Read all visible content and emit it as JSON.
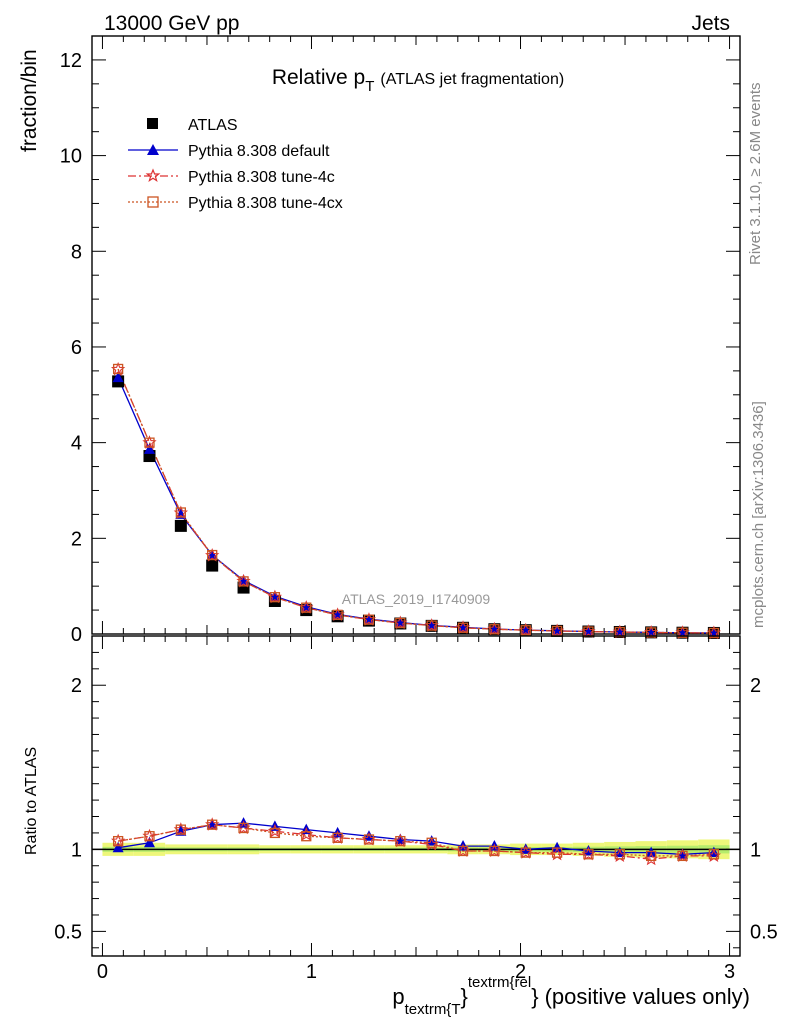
{
  "header": {
    "left": "13000 GeV pp",
    "right": "Jets"
  },
  "side_labels": {
    "rivet": "Rivet 3.1.10, ≥ 2.6M events",
    "mcplots": "mcplots.cern.ch [arXiv:1306.3436]"
  },
  "chart_data": [
    {
      "type": "line",
      "panel": "main",
      "title_main": "Relative p",
      "title_sub": "T",
      "title_rest": "(ATLAS jet fragmentation)",
      "ylabel": "fraction/bin",
      "watermark": "ATLAS_2019_I1740909",
      "xlim": [
        -0.05,
        3.05
      ],
      "ylim": [
        0,
        12.5
      ],
      "yticks": [
        0,
        2,
        4,
        6,
        8,
        10,
        12
      ],
      "ytick_labels": [
        "0",
        "2",
        "4",
        "6",
        "8",
        "10",
        "12"
      ],
      "x": [
        0.075,
        0.225,
        0.375,
        0.525,
        0.675,
        0.825,
        0.975,
        1.125,
        1.275,
        1.425,
        1.575,
        1.725,
        1.875,
        2.025,
        2.175,
        2.325,
        2.475,
        2.625,
        2.775,
        2.925
      ],
      "series": [
        {
          "name": "ATLAS",
          "color": "#000000",
          "marker": "square-filled",
          "values": [
            5.28,
            3.72,
            2.26,
            1.43,
            0.97,
            0.69,
            0.5,
            0.37,
            0.28,
            0.22,
            0.17,
            0.13,
            0.1,
            0.08,
            0.065,
            0.052,
            0.042,
            0.034,
            0.027,
            0.022
          ]
        },
        {
          "name": "Pythia 8.308 default",
          "color": "#0000cc",
          "marker": "triangle-filled",
          "dash": "",
          "values": [
            5.36,
            3.86,
            2.5,
            1.65,
            1.12,
            0.79,
            0.57,
            0.41,
            0.31,
            0.24,
            0.18,
            0.14,
            0.105,
            0.082,
            0.066,
            0.052,
            0.041,
            0.033,
            0.026,
            0.021
          ]
        },
        {
          "name": "Pythia 8.308 tune-4c",
          "color": "#dd3333",
          "marker": "star-open",
          "dash": "8,3,2,3",
          "values": [
            5.53,
            4.0,
            2.53,
            1.64,
            1.1,
            0.77,
            0.55,
            0.4,
            0.3,
            0.23,
            0.175,
            0.13,
            0.1,
            0.079,
            0.063,
            0.05,
            0.04,
            0.032,
            0.026,
            0.021
          ]
        },
        {
          "name": "Pythia 8.308 tune-4cx",
          "color": "#cc5522",
          "marker": "square-open",
          "dash": "2,2",
          "values": [
            5.54,
            4.0,
            2.54,
            1.65,
            1.1,
            0.77,
            0.55,
            0.4,
            0.3,
            0.23,
            0.176,
            0.13,
            0.1,
            0.079,
            0.064,
            0.051,
            0.041,
            0.033,
            0.026,
            0.021
          ]
        }
      ]
    },
    {
      "type": "line",
      "panel": "ratio",
      "ylabel": "Ratio to ATLAS",
      "xlabel_main": "p",
      "xlabel_sub": "textrm{T",
      "xlabel_brace": "}",
      "xlabel_sup": "textrm{rel",
      "xlabel_close": "}",
      "xlabel_rest": "(positive values only)",
      "xlim": [
        -0.05,
        3.05
      ],
      "ylim": [
        0.35,
        2.3
      ],
      "yticks": [
        0.5,
        1,
        2
      ],
      "ytick_labels": [
        "0.5",
        "1",
        "2"
      ],
      "xticks": [
        0,
        1,
        2,
        3
      ],
      "xtick_labels": [
        "0",
        "1",
        "2",
        "3"
      ],
      "x": [
        0.075,
        0.225,
        0.375,
        0.525,
        0.675,
        0.825,
        0.975,
        1.125,
        1.275,
        1.425,
        1.575,
        1.725,
        1.875,
        2.025,
        2.175,
        2.325,
        2.475,
        2.625,
        2.775,
        2.925
      ],
      "band_outer": [
        0.04,
        0.04,
        0.03,
        0.03,
        0.03,
        0.025,
        0.025,
        0.025,
        0.025,
        0.025,
        0.025,
        0.03,
        0.03,
        0.035,
        0.035,
        0.04,
        0.045,
        0.05,
        0.055,
        0.06
      ],
      "band_inner": [
        0.015,
        0.015,
        0.012,
        0.012,
        0.012,
        0.01,
        0.01,
        0.01,
        0.01,
        0.01,
        0.01,
        0.012,
        0.012,
        0.014,
        0.014,
        0.016,
        0.018,
        0.02,
        0.022,
        0.025
      ],
      "series": [
        {
          "name": "Pythia 8.308 default",
          "color": "#0000cc",
          "marker": "triangle-filled",
          "dash": "",
          "values": [
            1.01,
            1.04,
            1.11,
            1.15,
            1.16,
            1.14,
            1.12,
            1.1,
            1.08,
            1.06,
            1.05,
            1.02,
            1.02,
            1.0,
            1.01,
            0.99,
            0.98,
            0.98,
            0.97,
            0.98
          ]
        },
        {
          "name": "Pythia 8.308 tune-4c",
          "color": "#dd3333",
          "marker": "star-open",
          "dash": "8,3,2,3",
          "values": [
            1.05,
            1.08,
            1.12,
            1.15,
            1.13,
            1.11,
            1.09,
            1.07,
            1.06,
            1.05,
            1.03,
            0.99,
            0.99,
            0.98,
            0.97,
            0.97,
            0.96,
            0.94,
            0.96,
            0.96
          ]
        },
        {
          "name": "Pythia 8.308 tune-4cx",
          "color": "#cc5522",
          "marker": "square-open",
          "dash": "2,2",
          "values": [
            1.05,
            1.08,
            1.12,
            1.15,
            1.13,
            1.1,
            1.08,
            1.07,
            1.06,
            1.05,
            1.04,
            0.99,
            0.99,
            0.98,
            0.98,
            0.97,
            0.97,
            0.96,
            0.96,
            0.97
          ]
        }
      ]
    }
  ]
}
